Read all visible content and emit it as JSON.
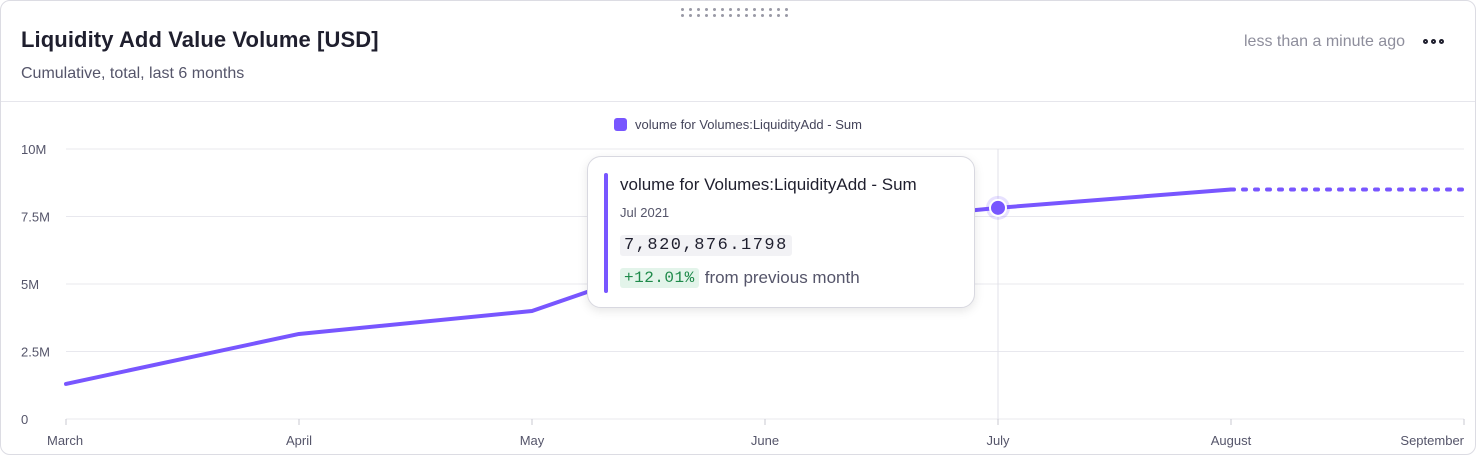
{
  "header": {
    "title": "Liquidity Add Value Volume [USD]",
    "subtitle": "Cumulative, total, last 6 months",
    "updated": "less than a minute ago"
  },
  "icons": {
    "drag_handle": "drag-handle-icon",
    "more": "more-horizontal-icon"
  },
  "colors": {
    "series": "#7856ff",
    "change_positive": "#1e8a4a"
  },
  "tooltip": {
    "title": "volume for Volumes:LiquidityAdd - Sum",
    "date": "Jul 2021",
    "value": "7,820,876.1798",
    "change": "+12.01%",
    "change_suffix": "from previous month"
  },
  "chart_data": {
    "type": "line",
    "title": "",
    "xlabel": "",
    "ylabel": "",
    "categories": [
      "March",
      "April",
      "May",
      "June",
      "July",
      "August",
      "September"
    ],
    "ylim": [
      0,
      10000000
    ],
    "y_ticks": [
      0,
      2500000,
      5000000,
      7500000,
      10000000
    ],
    "y_tick_labels": [
      "0",
      "2.5M",
      "5M",
      "7.5M",
      "10M"
    ],
    "grid": true,
    "legend": "top-center",
    "series": [
      {
        "name": "volume for Volumes:LiquidityAdd - Sum",
        "values": [
          1300000,
          3150000,
          4000000,
          6980000,
          7820876.1798,
          8500000,
          8500000
        ],
        "projected_from_index": 5
      }
    ],
    "highlight_index": 4
  }
}
